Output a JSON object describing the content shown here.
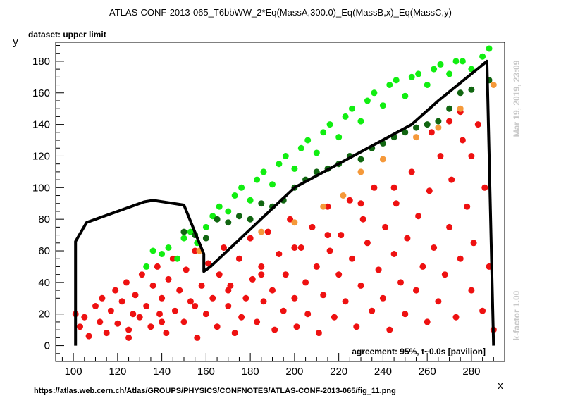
{
  "chart_data": {
    "type": "scatter",
    "title": "ATLAS-CONF-2013-065_T6bbWW_2*Eq(MassA,300.0)_Eq(MassB,x)_Eq(MassC,y)",
    "subtitle": "dataset: upper limit",
    "xlabel": "x",
    "ylabel": "y",
    "xlim": [
      92,
      295
    ],
    "ylim": [
      -10,
      192
    ],
    "x_ticks": [
      100,
      120,
      140,
      160,
      180,
      200,
      220,
      240,
      260,
      280
    ],
    "y_ticks": [
      0,
      20,
      40,
      60,
      80,
      100,
      120,
      140,
      160,
      180
    ],
    "x_tick_labels": [
      "100",
      "120",
      "140",
      "160",
      "180",
      "200",
      "220",
      "240",
      "260",
      "280"
    ],
    "y_tick_labels": [
      "0",
      "20",
      "40",
      "60",
      "80",
      "100",
      "120",
      "140",
      "160",
      "180"
    ],
    "grid": false,
    "colors": {
      "red": "#ee1111",
      "orange": "#f5993a",
      "light_green": "#11ee11",
      "dark_green": "#116611",
      "contour": "#000000",
      "side_text": "#c8c8c8"
    },
    "series": [
      {
        "color_key": "red",
        "points": [
          [
            101,
            20
          ],
          [
            103,
            12
          ],
          [
            105,
            18
          ],
          [
            107,
            6
          ],
          [
            110,
            25
          ],
          [
            112,
            15
          ],
          [
            113,
            30
          ],
          [
            115,
            8
          ],
          [
            117,
            22
          ],
          [
            119,
            35
          ],
          [
            120,
            14
          ],
          [
            122,
            28
          ],
          [
            124,
            40
          ],
          [
            125,
            10
          ],
          [
            127,
            20
          ],
          [
            128,
            32
          ],
          [
            130,
            18
          ],
          [
            131,
            45
          ],
          [
            133,
            25
          ],
          [
            135,
            12
          ],
          [
            136,
            38
          ],
          [
            138,
            50
          ],
          [
            139,
            20
          ],
          [
            140,
            30
          ],
          [
            142,
            8
          ],
          [
            143,
            42
          ],
          [
            145,
            55
          ],
          [
            146,
            22
          ],
          [
            148,
            35
          ],
          [
            150,
            15
          ],
          [
            151,
            48
          ],
          [
            153,
            28
          ],
          [
            155,
            60
          ],
          [
            156,
            5
          ],
          [
            158,
            38
          ],
          [
            160,
            20
          ],
          [
            161,
            52
          ],
          [
            163,
            30
          ],
          [
            165,
            12
          ],
          [
            166,
            45
          ],
          [
            168,
            62
          ],
          [
            170,
            25
          ],
          [
            171,
            38
          ],
          [
            173,
            8
          ],
          [
            175,
            55
          ],
          [
            176,
            18
          ],
          [
            178,
            30
          ],
          [
            180,
            68
          ],
          [
            181,
            42
          ],
          [
            183,
            15
          ],
          [
            185,
            50
          ],
          [
            186,
            28
          ],
          [
            188,
            72
          ],
          [
            190,
            35
          ],
          [
            191,
            10
          ],
          [
            193,
            58
          ],
          [
            195,
            22
          ],
          [
            196,
            45
          ],
          [
            198,
            80
          ],
          [
            200,
            30
          ],
          [
            201,
            12
          ],
          [
            203,
            62
          ],
          [
            205,
            40
          ],
          [
            206,
            20
          ],
          [
            208,
            75
          ],
          [
            210,
            50
          ],
          [
            211,
            8
          ],
          [
            213,
            32
          ],
          [
            215,
            88
          ],
          [
            216,
            60
          ],
          [
            218,
            18
          ],
          [
            220,
            45
          ],
          [
            221,
            70
          ],
          [
            223,
            28
          ],
          [
            225,
            92
          ],
          [
            226,
            55
          ],
          [
            228,
            12
          ],
          [
            230,
            38
          ],
          [
            231,
            80
          ],
          [
            233,
            65
          ],
          [
            235,
            22
          ],
          [
            236,
            100
          ],
          [
            238,
            48
          ],
          [
            240,
            30
          ],
          [
            241,
            75
          ],
          [
            243,
            10
          ],
          [
            245,
            58
          ],
          [
            246,
            90
          ],
          [
            248,
            40
          ],
          [
            250,
            20
          ],
          [
            251,
            68
          ],
          [
            253,
            110
          ],
          [
            255,
            35
          ],
          [
            256,
            82
          ],
          [
            258,
            50
          ],
          [
            260,
            15
          ],
          [
            261,
            98
          ],
          [
            263,
            62
          ],
          [
            265,
            28
          ],
          [
            266,
            120
          ],
          [
            268,
            45
          ],
          [
            270,
            75
          ],
          [
            271,
            105
          ],
          [
            273,
            18
          ],
          [
            275,
            55
          ],
          [
            276,
            130
          ],
          [
            278,
            88
          ],
          [
            280,
            35
          ],
          [
            281,
            65
          ],
          [
            283,
            140
          ],
          [
            285,
            22
          ],
          [
            286,
            100
          ],
          [
            288,
            50
          ],
          [
            290,
            10
          ],
          [
            262,
            135
          ],
          [
            270,
            142
          ],
          [
            275,
            148
          ],
          [
            280,
            120
          ],
          [
            245,
            100
          ],
          [
            230,
            90
          ],
          [
            215,
            70
          ],
          [
            200,
            62
          ],
          [
            185,
            45
          ],
          [
            170,
            35
          ],
          [
            155,
            25
          ],
          [
            140,
            15
          ],
          [
            125,
            5
          ]
        ]
      },
      {
        "color_key": "orange",
        "points": [
          [
            157,
            60
          ],
          [
            185,
            72
          ],
          [
            200,
            78
          ],
          [
            213,
            88
          ],
          [
            222,
            95
          ],
          [
            230,
            110
          ],
          [
            240,
            118
          ],
          [
            255,
            132
          ],
          [
            265,
            138
          ],
          [
            275,
            150
          ],
          [
            290,
            165
          ]
        ]
      },
      {
        "color_key": "light_green",
        "points": [
          [
            133,
            50
          ],
          [
            136,
            60
          ],
          [
            140,
            58
          ],
          [
            143,
            62
          ],
          [
            147,
            55
          ],
          [
            150,
            68
          ],
          [
            153,
            72
          ],
          [
            156,
            65
          ],
          [
            160,
            75
          ],
          [
            163,
            82
          ],
          [
            166,
            88
          ],
          [
            170,
            85
          ],
          [
            173,
            95
          ],
          [
            176,
            100
          ],
          [
            180,
            92
          ],
          [
            183,
            105
          ],
          [
            186,
            110
          ],
          [
            190,
            102
          ],
          [
            193,
            115
          ],
          [
            196,
            120
          ],
          [
            200,
            112
          ],
          [
            203,
            125
          ],
          [
            206,
            130
          ],
          [
            210,
            122
          ],
          [
            213,
            135
          ],
          [
            216,
            140
          ],
          [
            220,
            132
          ],
          [
            223,
            145
          ],
          [
            226,
            150
          ],
          [
            230,
            142
          ],
          [
            233,
            155
          ],
          [
            236,
            160
          ],
          [
            240,
            152
          ],
          [
            243,
            165
          ],
          [
            246,
            168
          ],
          [
            250,
            158
          ],
          [
            253,
            170
          ],
          [
            256,
            172
          ],
          [
            260,
            165
          ],
          [
            263,
            175
          ],
          [
            266,
            178
          ],
          [
            270,
            172
          ],
          [
            273,
            180
          ],
          [
            276,
            180
          ],
          [
            280,
            175
          ],
          [
            285,
            183
          ],
          [
            288,
            188
          ]
        ]
      },
      {
        "color_key": "dark_green",
        "points": [
          [
            150,
            72
          ],
          [
            155,
            70
          ],
          [
            160,
            68
          ],
          [
            165,
            80
          ],
          [
            170,
            78
          ],
          [
            175,
            82
          ],
          [
            180,
            80
          ],
          [
            185,
            90
          ],
          [
            190,
            88
          ],
          [
            195,
            92
          ],
          [
            200,
            100
          ],
          [
            205,
            105
          ],
          [
            210,
            110
          ],
          [
            215,
            112
          ],
          [
            220,
            115
          ],
          [
            225,
            120
          ],
          [
            230,
            118
          ],
          [
            235,
            125
          ],
          [
            240,
            128
          ],
          [
            245,
            132
          ],
          [
            250,
            135
          ],
          [
            255,
            138
          ],
          [
            260,
            140
          ],
          [
            265,
            142
          ],
          [
            270,
            150
          ],
          [
            275,
            160
          ],
          [
            280,
            162
          ],
          [
            288,
            168
          ]
        ]
      }
    ],
    "contour": [
      [
        101,
        0
      ],
      [
        101,
        66
      ],
      [
        106,
        78
      ],
      [
        132,
        91
      ],
      [
        136,
        92
      ],
      [
        150,
        89
      ],
      [
        159,
        58
      ],
      [
        159,
        47
      ],
      [
        162,
        50
      ],
      [
        200,
        100
      ],
      [
        253,
        140
      ],
      [
        265,
        155
      ],
      [
        287,
        180
      ],
      [
        290,
        0
      ]
    ],
    "annotation": "agreement: 95%, t~0.0s [pavilion]",
    "side_labels": {
      "timestamp": "Mar 19, 2019, 23:09",
      "kfactor": "k-factor 1.00"
    },
    "footer_url": "https://atlas.web.cern.ch/Atlas/GROUPS/PHYSICS/CONFNOTES/ATLAS-CONF-2013-065/fig_11.png"
  }
}
